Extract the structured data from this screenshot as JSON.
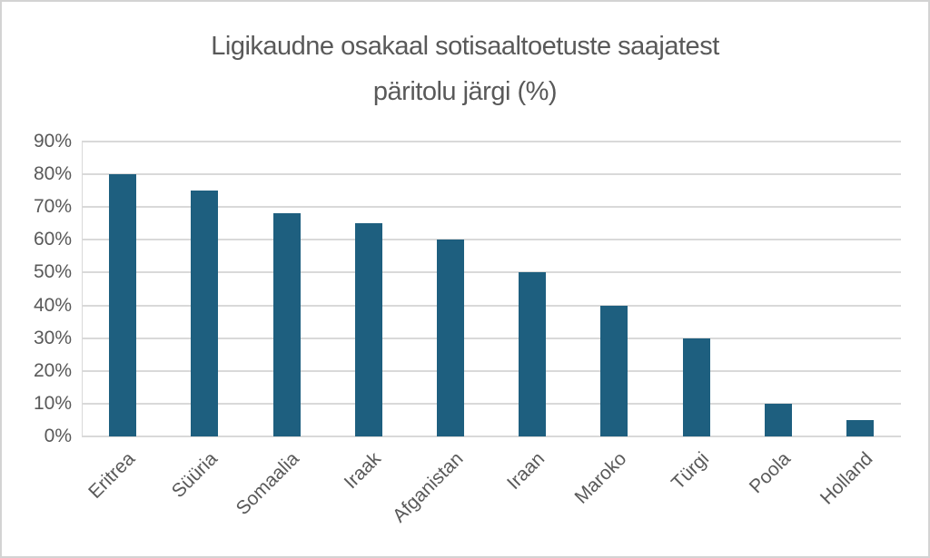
{
  "window": {
    "background": "#ffffff",
    "border_color": "#d3d3d3"
  },
  "chart_data": {
    "type": "bar",
    "title": "Ligikaudne osakaal sotisaaltoetuste saajatest päritolu järgi (%)",
    "title_lines": [
      "Ligikaudne osakaal sotisaaltoetuste saajatest",
      "päritolu järgi (%)"
    ],
    "categories": [
      "Eritrea",
      "Süüria",
      "Somaalia",
      "Iraak",
      "Afganistan",
      "Iraan",
      "Maroko",
      "Türgi",
      "Poola",
      "Holland"
    ],
    "values": [
      80,
      75,
      68,
      65,
      60,
      50,
      40,
      30,
      10,
      5
    ],
    "unit": "%",
    "xlabel": "",
    "ylabel": "",
    "ylim": [
      0,
      90
    ],
    "ytick_step": 10,
    "ytick_labels": [
      "0%",
      "10%",
      "20%",
      "30%",
      "40%",
      "50%",
      "60%",
      "70%",
      "80%",
      "90%"
    ],
    "grid": true,
    "legend": "none",
    "bar_color": "#1e5f7f",
    "gridline_color": "#d9d9d9",
    "text_color": "#595959"
  }
}
